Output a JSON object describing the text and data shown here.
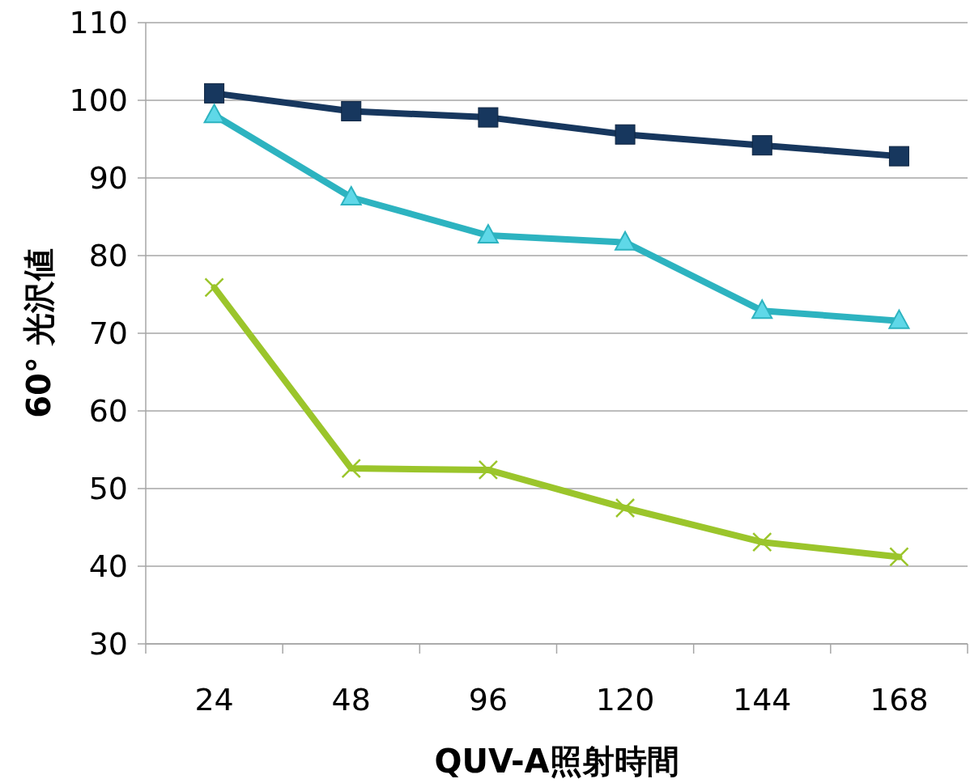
{
  "chart_data": {
    "type": "line",
    "xlabel": "QUV-A照射時間",
    "ylabel": "60° 光沢値",
    "categories": [
      "24",
      "48",
      "96",
      "120",
      "144",
      "168"
    ],
    "series": [
      {
        "color": "#17375e",
        "marker": "square",
        "values": [
          100.9,
          98.6,
          97.8,
          95.6,
          94.2,
          92.8
        ]
      },
      {
        "color": "#2db3c0",
        "marker": "triangle",
        "values": [
          98.1,
          87.5,
          82.6,
          81.7,
          72.9,
          71.6
        ]
      },
      {
        "color": "#9bc52b",
        "marker": "cross",
        "values": [
          75.9,
          52.6,
          52.4,
          47.5,
          43.1,
          41.2
        ]
      }
    ],
    "ylim": [
      30,
      110
    ],
    "yticks": [
      30,
      40,
      50,
      60,
      70,
      80,
      90,
      100,
      110
    ],
    "grid": "y"
  }
}
